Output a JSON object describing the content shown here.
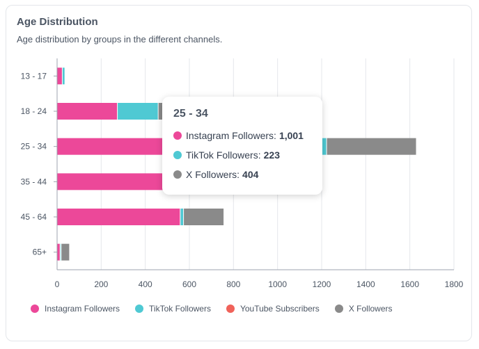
{
  "card": {
    "title": "Age Distribution",
    "subtitle": "Age distribution by groups in the different channels."
  },
  "colors": {
    "instagram": "#ec4899",
    "tiktok": "#4fc9d3",
    "youtube": "#f0625a",
    "x": "#8a8a8a",
    "grid": "#e5e7eb",
    "axis": "#9ca3af"
  },
  "chart_data": {
    "type": "bar",
    "orientation": "horizontal",
    "stacked": true,
    "categories": [
      "13 - 17",
      "18 - 24",
      "25 - 34",
      "35 - 44",
      "45 - 64",
      "65+"
    ],
    "xlim": [
      0,
      1800
    ],
    "xticks": [
      0,
      200,
      400,
      600,
      800,
      1000,
      1200,
      1400,
      1600,
      1800
    ],
    "xtick_labels": [
      "0",
      "200",
      "400",
      "600",
      "800",
      "1000",
      "1200",
      "1400",
      "1600",
      "1800"
    ],
    "series": [
      {
        "name": "Instagram Followers",
        "key": "instagram",
        "values": [
          25,
          275,
          1001,
          620,
          560,
          15
        ]
      },
      {
        "name": "TikTok Followers",
        "key": "tiktok",
        "values": [
          12,
          185,
          223,
          60,
          15,
          5
        ]
      },
      {
        "name": "YouTube Subscribers",
        "key": "youtube",
        "values": [
          0,
          0,
          0,
          0,
          0,
          0
        ]
      },
      {
        "name": "X Followers",
        "key": "x",
        "values": [
          0,
          20,
          404,
          120,
          180,
          35
        ]
      }
    ],
    "grid": true
  },
  "legend": {
    "items": [
      {
        "label": "Instagram Followers",
        "key": "instagram"
      },
      {
        "label": "TikTok Followers",
        "key": "tiktok"
      },
      {
        "label": "YouTube Subscribers",
        "key": "youtube"
      },
      {
        "label": "X Followers",
        "key": "x"
      }
    ]
  },
  "tooltip": {
    "title": "25 - 34",
    "rows": [
      {
        "label": "Instagram Followers:",
        "value": "1,001",
        "key": "instagram"
      },
      {
        "label": "TikTok Followers:",
        "value": "223",
        "key": "tiktok"
      },
      {
        "label": "X Followers:",
        "value": "404",
        "key": "x"
      }
    ]
  }
}
